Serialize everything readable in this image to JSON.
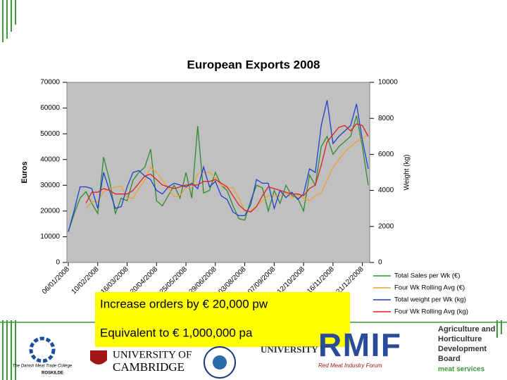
{
  "chart_data": {
    "type": "line",
    "title": "European Exports 2008",
    "y_label": "Euros",
    "y2_label": "Weight (kg)",
    "categories": [
      "06/01/2008",
      null,
      null,
      null,
      null,
      "10/02/2008",
      null,
      null,
      null,
      null,
      "16/03/2008",
      null,
      null,
      null,
      null,
      "20/04/2008",
      null,
      null,
      null,
      null,
      "25/05/2008",
      null,
      null,
      null,
      null,
      "29/06/2008",
      null,
      null,
      null,
      null,
      "03/08/2008",
      null,
      null,
      null,
      null,
      "07/09/2008",
      null,
      null,
      null,
      null,
      "12/10/2008",
      null,
      null,
      null,
      null,
      "16/11/2008",
      null,
      null,
      null,
      null,
      "21/12/2008",
      null
    ],
    "ylim": [
      0,
      70000
    ],
    "yticks": [
      0,
      10000,
      20000,
      30000,
      40000,
      50000,
      60000,
      70000
    ],
    "y2lim": [
      0,
      10000
    ],
    "y2ticks": [
      0,
      2000,
      4000,
      6000,
      8000,
      10000
    ],
    "series": [
      {
        "name": "Total Sales per Wk (€)",
        "color": "#2e8b2e",
        "values": [
          12000,
          19000,
          25000,
          27500,
          23000,
          19000,
          41000,
          32000,
          19000,
          25000,
          24000,
          32000,
          35000,
          37000,
          44000,
          24000,
          22000,
          26000,
          30000,
          25000,
          35000,
          25000,
          53000,
          27000,
          28000,
          35000,
          30000,
          28000,
          22000,
          17000,
          16500,
          24000,
          30000,
          29000,
          20000,
          28000,
          23000,
          30000,
          26000,
          25000,
          20000,
          34000,
          30000,
          45000,
          49000,
          42000,
          45000,
          47000,
          49000,
          57000,
          45000,
          30000
        ]
      },
      {
        "name": "Four Wk Rolling Avg (€)",
        "color": "#f0a030",
        "values": [
          null,
          null,
          null,
          20900,
          23600,
          23600,
          27600,
          28600,
          29200,
          29800,
          25000,
          25000,
          28800,
          32000,
          37000,
          35000,
          32000,
          29000,
          25500,
          26000,
          29000,
          29000,
          34500,
          35000,
          35000,
          33000,
          30000,
          29000,
          29000,
          25000,
          20000,
          20000,
          22000,
          24000,
          26000,
          26000,
          26000,
          27000,
          25000,
          26000,
          25000,
          24000,
          26000,
          27000,
          32000,
          37000,
          40000,
          43000,
          45000,
          47000,
          48000,
          50000
        ]
      },
      {
        "name": "Total weight per Wk (kg)",
        "color": "#1f3fd0",
        "axis": "y2",
        "values": [
          1700,
          2900,
          4200,
          4200,
          4100,
          3000,
          5000,
          4000,
          3000,
          3100,
          4200,
          5000,
          5100,
          4800,
          4600,
          4000,
          3800,
          4200,
          4400,
          4300,
          4200,
          4400,
          4100,
          5300,
          4200,
          4500,
          3700,
          3500,
          2800,
          2600,
          2600,
          3200,
          4600,
          4400,
          4400,
          3000,
          4000,
          3600,
          3900,
          3500,
          3800,
          5200,
          5000,
          7600,
          9000,
          6600,
          7000,
          7300,
          7600,
          8800,
          6800,
          5200
        ]
      },
      {
        "name": "Four Wk Rolling Avg (kg)",
        "color": "#e02020",
        "axis": "y2",
        "values": [
          null,
          null,
          null,
          3300,
          3900,
          3900,
          4100,
          4000,
          3800,
          3800,
          3800,
          4000,
          4400,
          4800,
          4900,
          4600,
          4300,
          4200,
          4100,
          4200,
          4300,
          4300,
          4300,
          4500,
          4500,
          4600,
          4400,
          4200,
          3700,
          3200,
          2900,
          2800,
          3100,
          3700,
          4200,
          4100,
          4000,
          3900,
          3800,
          3800,
          3700,
          4100,
          4300,
          5400,
          6700,
          7100,
          7500,
          7600,
          7300,
          7700,
          7600,
          7000
        ]
      }
    ],
    "legend": "right"
  },
  "callouts": [
    "Increase orders by € 20,000 pw",
    "Equivalent to € 1,000,000 pa"
  ],
  "logos": {
    "danish": "The Danish Meat Trade College",
    "danish_sub": "ROSKILDE",
    "cambridge_1": "UNIVERSITY OF",
    "cambridge_2": "CAMBRIDGE",
    "university": "UNIVERSITY",
    "rmif": "RMIF",
    "rmif_sub": "Red Meat Industry Forum",
    "ahdb": [
      "Agriculture and",
      "Horticulture",
      "Development",
      "Board"
    ],
    "ahdb_sub": "meat services"
  }
}
